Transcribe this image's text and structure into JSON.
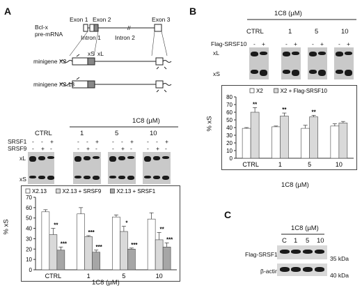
{
  "panelA": {
    "letter": "A",
    "schematic": {
      "gene_label_1": "Bcl-x",
      "gene_label_2": "pre-mRNA",
      "exon1": "Exon 1",
      "exon2": "Exon 2",
      "intron1": "Intron 1",
      "intron2": "Intron 2",
      "exon3": "Exon 3",
      "xS": "xS",
      "xL": "xL",
      "minigene_x2": "minigene  X2",
      "minigene_x213": "minigene  X2.13"
    },
    "dose_header": "1C8 (µM)",
    "groups": [
      "CTRL",
      "1",
      "5",
      "10"
    ],
    "row_srsf1": "SRSF1",
    "row_srsf9": "SRSF9",
    "srsf1_signs": [
      "-",
      "-",
      "+"
    ],
    "srsf9_signs": [
      "-",
      "+",
      "-"
    ],
    "band_xL": "xL",
    "band_xS": "xS",
    "legend": [
      "X2.13",
      "X2.13 + SRSF9",
      "X2.13 + SRSF1"
    ],
    "ylabel": "% xS",
    "xlabel": "1C8 (µM)"
  },
  "panelB": {
    "letter": "B",
    "dose_header": "1C8 (µM)",
    "groups": [
      "CTRL",
      "1",
      "5",
      "10"
    ],
    "row_flag": "Flag-SRSF10",
    "flag_signs": [
      "-",
      "+"
    ],
    "band_xL": "xL",
    "band_xS": "xS",
    "legend": [
      "X2",
      "X2 + Flag-SRSF10"
    ],
    "ylabel": "% xS",
    "xlabel": "1C8 (µM)"
  },
  "panelC": {
    "letter": "C",
    "dose_header": "1C8 (µM)",
    "lanes": [
      "C",
      "1",
      "5",
      "10"
    ],
    "row1": "Flag-SRSF10",
    "row2": "β-actin",
    "marker1": "35 kDa",
    "marker2": "40 kDa"
  },
  "chart_data": [
    {
      "type": "bar",
      "categories": [
        "CTRL",
        "1",
        "5",
        "10"
      ],
      "series": [
        {
          "name": "X2.13",
          "values": [
            56,
            54,
            51,
            49
          ],
          "errors": [
            2,
            6,
            2,
            6
          ],
          "color": "#ffffff"
        },
        {
          "name": "X2.13 + SRSF9",
          "values": [
            34,
            32,
            37,
            29
          ],
          "errors": [
            6,
            1,
            5,
            7
          ],
          "color": "#d9d9d9"
        },
        {
          "name": "X2.13 + SRSF1",
          "values": [
            19,
            17,
            20,
            22
          ],
          "errors": [
            3,
            2,
            1,
            4
          ],
          "color": "#a6a6a6"
        }
      ],
      "significance": [
        [
          "",
          "**",
          "***"
        ],
        [
          "",
          "***",
          "***"
        ],
        [
          "",
          "*",
          "***"
        ],
        [
          "",
          "**",
          "***"
        ]
      ],
      "ylabel": "% xS",
      "xlabel": "1C8 (µM)",
      "ylim": [
        0,
        70
      ],
      "yticks": [
        0,
        10,
        20,
        30,
        40,
        50,
        60,
        70
      ]
    },
    {
      "type": "bar",
      "categories": [
        "CTRL",
        "1",
        "5",
        "10"
      ],
      "series": [
        {
          "name": "X2",
          "values": [
            39,
            41,
            39,
            42
          ],
          "errors": [
            1,
            1,
            4,
            3
          ],
          "color": "#ffffff"
        },
        {
          "name": "X2 + Flag-SRSF10",
          "values": [
            60,
            55,
            54,
            46
          ],
          "errors": [
            6,
            4,
            2,
            2
          ],
          "color": "#d9d9d9"
        }
      ],
      "significance": [
        [
          "",
          "**"
        ],
        [
          "",
          "**"
        ],
        [
          "",
          "**"
        ],
        [
          "",
          ""
        ]
      ],
      "ylabel": "% xS",
      "xlabel": "1C8 (µM)",
      "ylim": [
        0,
        80
      ],
      "yticks": [
        0,
        10,
        20,
        30,
        40,
        50,
        60,
        70,
        80
      ]
    }
  ]
}
